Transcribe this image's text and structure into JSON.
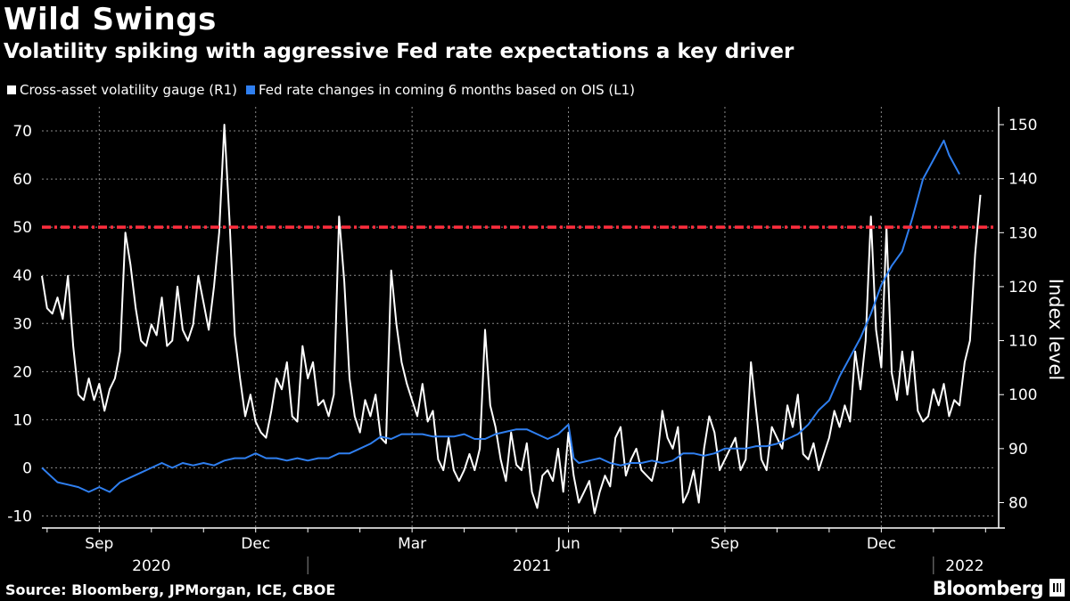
{
  "title": "Wild Swings",
  "subtitle": "Volatility spiking with aggressive Fed rate expectations a key driver",
  "source": "Source: Bloomberg, JPMorgan, ICE, CBOE",
  "brand": "Bloomberg",
  "colors": {
    "background": "#000000",
    "vol": "#ffffff",
    "fed": "#2f7ff0",
    "threshold": "#ff2d3d",
    "grid": "#8a8a8a"
  },
  "chart_data": {
    "type": "line",
    "title": "Wild Swings",
    "subtitle": "Volatility spiking with aggressive Fed rate expectations a key driver",
    "right_axis_label": "Index level",
    "left_axis": {
      "ticks": [
        -10,
        0,
        10,
        20,
        30,
        40,
        50,
        60,
        70
      ],
      "tick_labels": [
        "-10",
        "0",
        "10",
        "20",
        "30",
        "40",
        "50",
        "60",
        "70"
      ],
      "range": [
        -12.5,
        75
      ]
    },
    "right_axis": {
      "ticks": [
        80,
        90,
        100,
        110,
        120,
        130,
        140,
        150
      ],
      "tick_labels": [
        "80",
        "90",
        "100",
        "110",
        "120",
        "130",
        "140",
        "150"
      ],
      "range": [
        75.3,
        153.3
      ]
    },
    "x_axis": {
      "unit": "months since 2020-06-01",
      "range": [
        1.9,
        20.2
      ],
      "month_ticks": [
        {
          "label": "Sep",
          "x": 3.0
        },
        {
          "label": "Dec",
          "x": 6.0
        },
        {
          "label": "Mar",
          "x": 9.0
        },
        {
          "label": "Jun",
          "x": 12.0
        },
        {
          "label": "Sep",
          "x": 15.0
        },
        {
          "label": "Dec",
          "x": 18.0
        }
      ],
      "years": [
        {
          "label": "2020",
          "x": 4.0
        },
        {
          "label": "2021",
          "x": 11.3
        },
        {
          "label": "2022",
          "x": 19.6
        }
      ],
      "year_dividers": [
        7.0,
        19.0
      ]
    },
    "threshold": {
      "value": 50,
      "axis": "left",
      "style": "dash-dot"
    },
    "legend": [
      {
        "name": "Cross-asset volatility gauge (R1)",
        "color": "#ffffff"
      },
      {
        "name": "Fed rate changes in coming 6 months based on OIS (L1)",
        "color": "#2f7ff0"
      }
    ],
    "series": [
      {
        "name": "Fed rate changes in coming 6 months based on OIS (L1)",
        "axis": "left",
        "points": [
          [
            1.9,
            0
          ],
          [
            2.0,
            -1
          ],
          [
            2.2,
            -3
          ],
          [
            2.4,
            -3.5
          ],
          [
            2.6,
            -4
          ],
          [
            2.8,
            -5
          ],
          [
            3.0,
            -4
          ],
          [
            3.2,
            -5
          ],
          [
            3.4,
            -3
          ],
          [
            3.6,
            -2
          ],
          [
            3.8,
            -1
          ],
          [
            4.0,
            0
          ],
          [
            4.2,
            1
          ],
          [
            4.4,
            0
          ],
          [
            4.6,
            1
          ],
          [
            4.8,
            0.5
          ],
          [
            5.0,
            1
          ],
          [
            5.2,
            0.5
          ],
          [
            5.4,
            1.5
          ],
          [
            5.6,
            2
          ],
          [
            5.8,
            2
          ],
          [
            6.0,
            3
          ],
          [
            6.2,
            2
          ],
          [
            6.4,
            2
          ],
          [
            6.6,
            1.5
          ],
          [
            6.8,
            2
          ],
          [
            7.0,
            1.5
          ],
          [
            7.2,
            2
          ],
          [
            7.4,
            2
          ],
          [
            7.6,
            3
          ],
          [
            7.8,
            3
          ],
          [
            8.0,
            4
          ],
          [
            8.2,
            5
          ],
          [
            8.4,
            6.5
          ],
          [
            8.6,
            6
          ],
          [
            8.8,
            7
          ],
          [
            9.0,
            7
          ],
          [
            9.2,
            7
          ],
          [
            9.4,
            6.5
          ],
          [
            9.6,
            6.5
          ],
          [
            9.8,
            6.5
          ],
          [
            10.0,
            7
          ],
          [
            10.2,
            6
          ],
          [
            10.4,
            6
          ],
          [
            10.6,
            7
          ],
          [
            10.8,
            7.5
          ],
          [
            11.0,
            8
          ],
          [
            11.2,
            8
          ],
          [
            11.4,
            7
          ],
          [
            11.6,
            6
          ],
          [
            11.8,
            7
          ],
          [
            12.0,
            9
          ],
          [
            12.1,
            2
          ],
          [
            12.2,
            1
          ],
          [
            12.4,
            1.5
          ],
          [
            12.6,
            2
          ],
          [
            12.8,
            1
          ],
          [
            13.0,
            0.5
          ],
          [
            13.2,
            1
          ],
          [
            13.4,
            1
          ],
          [
            13.6,
            1.5
          ],
          [
            13.8,
            1
          ],
          [
            14.0,
            1.5
          ],
          [
            14.2,
            3
          ],
          [
            14.4,
            3
          ],
          [
            14.6,
            2.5
          ],
          [
            14.8,
            3
          ],
          [
            15.0,
            4
          ],
          [
            15.2,
            4
          ],
          [
            15.4,
            4
          ],
          [
            15.6,
            4.5
          ],
          [
            15.8,
            4.5
          ],
          [
            16.0,
            5
          ],
          [
            16.2,
            6
          ],
          [
            16.4,
            7
          ],
          [
            16.6,
            9
          ],
          [
            16.8,
            12
          ],
          [
            17.0,
            14
          ],
          [
            17.2,
            19
          ],
          [
            17.4,
            23
          ],
          [
            17.6,
            27
          ],
          [
            17.8,
            32
          ],
          [
            18.0,
            38
          ],
          [
            18.2,
            42
          ],
          [
            18.4,
            45
          ],
          [
            18.6,
            52
          ],
          [
            18.8,
            60
          ],
          [
            19.0,
            64
          ],
          [
            19.2,
            68
          ],
          [
            19.3,
            65
          ],
          [
            19.4,
            63
          ],
          [
            19.5,
            61
          ]
        ]
      },
      {
        "name": "Cross-asset volatility gauge (R1)",
        "axis": "right",
        "points": [
          [
            1.9,
            122
          ],
          [
            2.0,
            116
          ],
          [
            2.1,
            115
          ],
          [
            2.2,
            118
          ],
          [
            2.3,
            114
          ],
          [
            2.4,
            122
          ],
          [
            2.5,
            109
          ],
          [
            2.6,
            100
          ],
          [
            2.7,
            99
          ],
          [
            2.8,
            103
          ],
          [
            2.9,
            99
          ],
          [
            3.0,
            102
          ],
          [
            3.1,
            97
          ],
          [
            3.2,
            101
          ],
          [
            3.3,
            103
          ],
          [
            3.4,
            108
          ],
          [
            3.5,
            130
          ],
          [
            3.6,
            124
          ],
          [
            3.7,
            116
          ],
          [
            3.8,
            110
          ],
          [
            3.9,
            109
          ],
          [
            4.0,
            113
          ],
          [
            4.1,
            111
          ],
          [
            4.2,
            118
          ],
          [
            4.3,
            109
          ],
          [
            4.4,
            110
          ],
          [
            4.5,
            120
          ],
          [
            4.6,
            112
          ],
          [
            4.7,
            110
          ],
          [
            4.8,
            113
          ],
          [
            4.9,
            122
          ],
          [
            5.0,
            117
          ],
          [
            5.1,
            112
          ],
          [
            5.2,
            120
          ],
          [
            5.3,
            130
          ],
          [
            5.4,
            150
          ],
          [
            5.5,
            132
          ],
          [
            5.6,
            111
          ],
          [
            5.7,
            103
          ],
          [
            5.8,
            96
          ],
          [
            5.9,
            100
          ],
          [
            6.0,
            95
          ],
          [
            6.1,
            93
          ],
          [
            6.2,
            92
          ],
          [
            6.3,
            97
          ],
          [
            6.4,
            103
          ],
          [
            6.5,
            101
          ],
          [
            6.6,
            106
          ],
          [
            6.7,
            96
          ],
          [
            6.8,
            95
          ],
          [
            6.9,
            109
          ],
          [
            7.0,
            103
          ],
          [
            7.1,
            106
          ],
          [
            7.2,
            98
          ],
          [
            7.3,
            99
          ],
          [
            7.4,
            96
          ],
          [
            7.5,
            100
          ],
          [
            7.6,
            133
          ],
          [
            7.7,
            121
          ],
          [
            7.8,
            103
          ],
          [
            7.9,
            96
          ],
          [
            8.0,
            93
          ],
          [
            8.1,
            99
          ],
          [
            8.2,
            96
          ],
          [
            8.3,
            100
          ],
          [
            8.4,
            92
          ],
          [
            8.5,
            91
          ],
          [
            8.6,
            123
          ],
          [
            8.7,
            113
          ],
          [
            8.8,
            106
          ],
          [
            8.9,
            102
          ],
          [
            9.0,
            99
          ],
          [
            9.1,
            96
          ],
          [
            9.2,
            102
          ],
          [
            9.3,
            95
          ],
          [
            9.4,
            97
          ],
          [
            9.5,
            88
          ],
          [
            9.6,
            86
          ],
          [
            9.7,
            92
          ],
          [
            9.8,
            86
          ],
          [
            9.9,
            84
          ],
          [
            10.0,
            86
          ],
          [
            10.1,
            89
          ],
          [
            10.2,
            86
          ],
          [
            10.3,
            90
          ],
          [
            10.4,
            112
          ],
          [
            10.5,
            98
          ],
          [
            10.6,
            94
          ],
          [
            10.7,
            88
          ],
          [
            10.8,
            84
          ],
          [
            10.9,
            93
          ],
          [
            11.0,
            87
          ],
          [
            11.1,
            86
          ],
          [
            11.2,
            91
          ],
          [
            11.3,
            82
          ],
          [
            11.4,
            79
          ],
          [
            11.5,
            85
          ],
          [
            11.6,
            86
          ],
          [
            11.7,
            84
          ],
          [
            11.8,
            90
          ],
          [
            11.9,
            82
          ],
          [
            12.0,
            93
          ],
          [
            12.1,
            85
          ],
          [
            12.2,
            80
          ],
          [
            12.3,
            82
          ],
          [
            12.4,
            84
          ],
          [
            12.5,
            78
          ],
          [
            12.6,
            82
          ],
          [
            12.7,
            85
          ],
          [
            12.8,
            83
          ],
          [
            12.9,
            92
          ],
          [
            13.0,
            94
          ],
          [
            13.1,
            85
          ],
          [
            13.2,
            88
          ],
          [
            13.3,
            90
          ],
          [
            13.4,
            86
          ],
          [
            13.5,
            85
          ],
          [
            13.6,
            84
          ],
          [
            13.7,
            88
          ],
          [
            13.8,
            97
          ],
          [
            13.9,
            92
          ],
          [
            14.0,
            90
          ],
          [
            14.1,
            94
          ],
          [
            14.2,
            80
          ],
          [
            14.3,
            82
          ],
          [
            14.4,
            86
          ],
          [
            14.5,
            80
          ],
          [
            14.6,
            90
          ],
          [
            14.7,
            96
          ],
          [
            14.8,
            93
          ],
          [
            14.9,
            86
          ],
          [
            15.0,
            88
          ],
          [
            15.1,
            90
          ],
          [
            15.2,
            92
          ],
          [
            15.3,
            86
          ],
          [
            15.4,
            88
          ],
          [
            15.5,
            106
          ],
          [
            15.6,
            97
          ],
          [
            15.7,
            88
          ],
          [
            15.8,
            86
          ],
          [
            15.9,
            94
          ],
          [
            16.0,
            92
          ],
          [
            16.1,
            90
          ],
          [
            16.2,
            98
          ],
          [
            16.3,
            94
          ],
          [
            16.4,
            100
          ],
          [
            16.5,
            89
          ],
          [
            16.6,
            88
          ],
          [
            16.7,
            91
          ],
          [
            16.8,
            86
          ],
          [
            16.9,
            89
          ],
          [
            17.0,
            92
          ],
          [
            17.1,
            97
          ],
          [
            17.2,
            94
          ],
          [
            17.3,
            98
          ],
          [
            17.4,
            95
          ],
          [
            17.5,
            108
          ],
          [
            17.6,
            101
          ],
          [
            17.7,
            110
          ],
          [
            17.8,
            133
          ],
          [
            17.9,
            112
          ],
          [
            18.0,
            105
          ],
          [
            18.1,
            131
          ],
          [
            18.2,
            104
          ],
          [
            18.3,
            99
          ],
          [
            18.4,
            108
          ],
          [
            18.5,
            100
          ],
          [
            18.6,
            108
          ],
          [
            18.7,
            97
          ],
          [
            18.8,
            95
          ],
          [
            18.9,
            96
          ],
          [
            19.0,
            101
          ],
          [
            19.1,
            98
          ],
          [
            19.2,
            102
          ],
          [
            19.3,
            96
          ],
          [
            19.4,
            99
          ],
          [
            19.5,
            98
          ],
          [
            19.6,
            106
          ],
          [
            19.7,
            110
          ],
          [
            19.8,
            126
          ],
          [
            19.9,
            137
          ]
        ]
      }
    ]
  }
}
